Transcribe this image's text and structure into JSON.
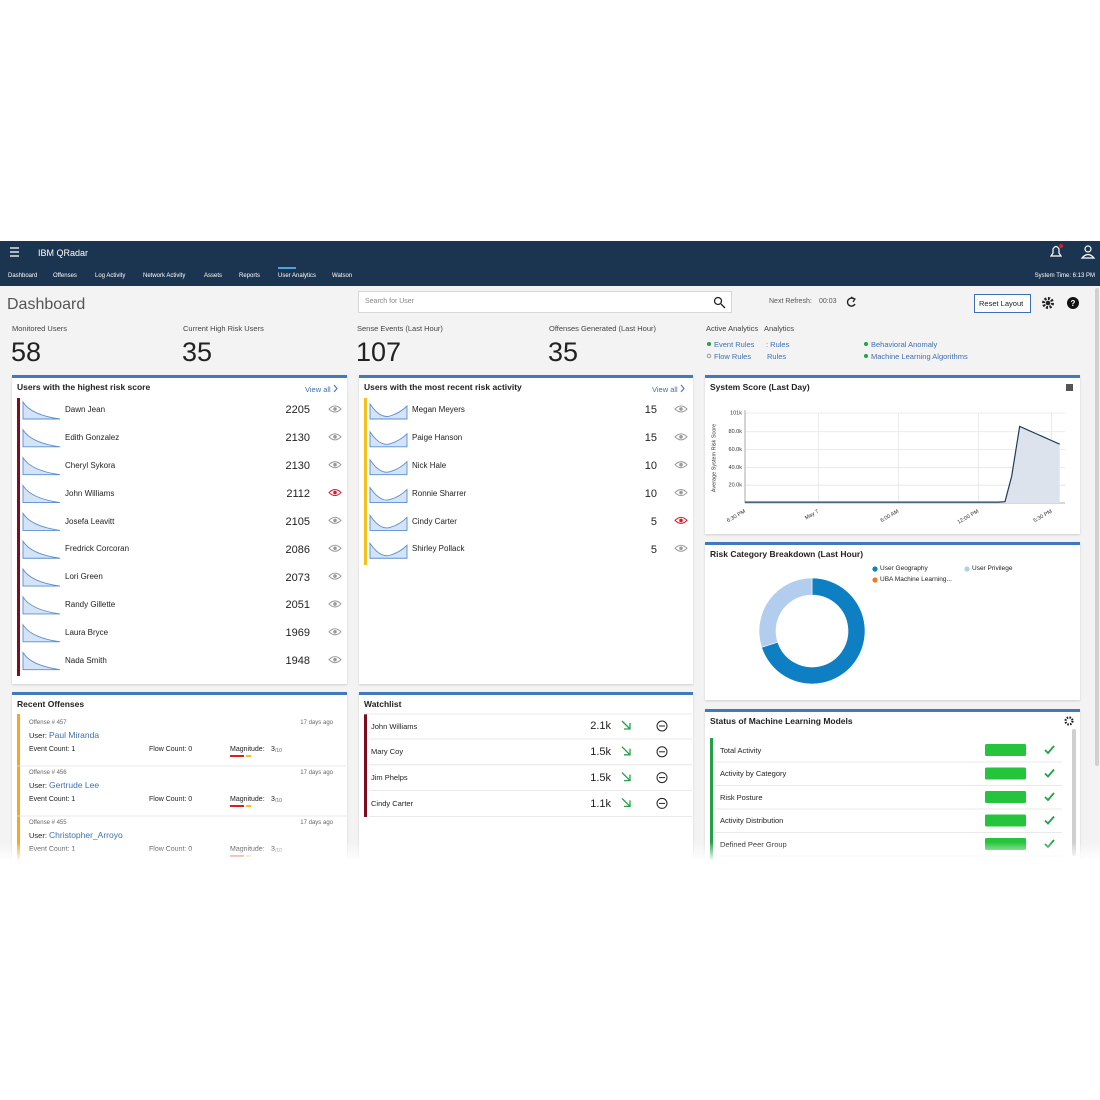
{
  "header": {
    "title": "IBM QRadar",
    "tabs": [
      "Dashboard",
      "Offenses",
      "Log Activity",
      "Network Activity",
      "Assets",
      "Reports",
      "User Analytics",
      "Watson"
    ],
    "system_time": "System Time: 6:13 PM"
  },
  "toolbar": {
    "title": "Dashboard",
    "search_placeholder": "Search for User",
    "next_refresh_label": "Next Refresh:",
    "next_refresh": "00:03",
    "reset_layout": "Reset Layout"
  },
  "stats": [
    {
      "label": "Monitored Users",
      "value": 58
    },
    {
      "label": "Current High Risk Users",
      "value": 35
    },
    {
      "label": "Sense Events (Last Hour)",
      "value": 107
    },
    {
      "label": "Offenses Generated (Last Hour)",
      "value": 35
    }
  ],
  "active_analytics": {
    "title": "Active Analytics",
    "title_overlap": "Analytics",
    "items": [
      "Event Rules",
      ": Rules",
      "Flow Rules",
      "Rules",
      "Behavioral Anomaly",
      "Machine Learning Algorithms"
    ]
  },
  "highest_risk": {
    "title": "Users with the highest risk score",
    "view_all": "View all",
    "rows": [
      {
        "name": "Dawn Jean",
        "score": 2205,
        "flagged": false
      },
      {
        "name": "Edith Gonzalez",
        "score": 2130,
        "flagged": false
      },
      {
        "name": "Cheryl Sykora",
        "score": 2130,
        "flagged": false
      },
      {
        "name": "John Williams",
        "score": 2112,
        "flagged": true
      },
      {
        "name": "Josefa Leavitt",
        "score": 2105,
        "flagged": false
      },
      {
        "name": "Fredrick Corcoran",
        "score": 2086,
        "flagged": false
      },
      {
        "name": "Lori Green",
        "score": 2073,
        "flagged": false
      },
      {
        "name": "Randy Gillette",
        "score": 2051,
        "flagged": false
      },
      {
        "name": "Laura Bryce",
        "score": 1969,
        "flagged": false
      },
      {
        "name": "Nada Smith",
        "score": 1948,
        "flagged": false
      }
    ]
  },
  "recent_activity": {
    "title": "Users with the most recent risk activity",
    "view_all": "View all",
    "rows": [
      {
        "name": "Megan Meyers",
        "score": 15,
        "flagged": false
      },
      {
        "name": "Paige Hanson",
        "score": 15,
        "flagged": false
      },
      {
        "name": "Nick Hale",
        "score": 10,
        "flagged": false
      },
      {
        "name": "Ronnie Sharrer",
        "score": 10,
        "flagged": false
      },
      {
        "name": "Cindy Carter",
        "score": 5,
        "flagged": true
      },
      {
        "name": "Shirley Pollack",
        "score": 5,
        "flagged": false
      }
    ]
  },
  "system_score": {
    "type": "line",
    "title": "System Score (Last Day)",
    "y_label": "Average System Risk Score",
    "x": [
      0,
      2,
      4,
      6,
      8,
      10,
      12,
      14,
      16,
      18,
      19,
      19.5,
      20,
      20.6,
      21.2,
      21.8,
      22.4,
      23,
      23.6
    ],
    "values": [
      1000,
      1000,
      1000,
      1000,
      1000,
      1000,
      1000,
      1000,
      1000,
      1000,
      1000,
      1500,
      30000,
      86000,
      82000,
      78000,
      74000,
      70000,
      66000
    ],
    "color": "#1f3a5c",
    "xlim": [
      0,
      24
    ],
    "ylim": [
      0,
      101000
    ],
    "xticks": [
      {
        "value": 0,
        "label": "6:30 PM"
      },
      {
        "value": 5.5,
        "label": "May 7"
      },
      {
        "value": 11.5,
        "label": "6:00 AM"
      },
      {
        "value": 17.5,
        "label": "12:00 PM"
      },
      {
        "value": 23,
        "label": "5:30 PM"
      }
    ],
    "yticks": [
      {
        "value": 20000,
        "label": "20.0k"
      },
      {
        "value": 40000,
        "label": "40.0k"
      },
      {
        "value": 60000,
        "label": "60.0k"
      },
      {
        "value": 80000,
        "label": "80.0k"
      },
      {
        "value": 101000,
        "label": "101k"
      }
    ],
    "grid": true
  },
  "risk_category": {
    "type": "pie",
    "title": "Risk Category Breakdown (Last Hour)",
    "series": [
      {
        "name": "User Geography",
        "color": "#0f7fc4",
        "value": 70
      },
      {
        "name": "User Privilege",
        "color": "#b3cdee",
        "value": 30
      },
      {
        "name": "UBA Machine Learning...",
        "color": "#f07d1a",
        "value": 0
      }
    ]
  },
  "recent_offenses": {
    "title": "Recent Offenses",
    "items": [
      {
        "offense": "Offense # 457",
        "age": "17 days ago",
        "user_label": "User:",
        "user": "Paul Miranda",
        "event_count": "Event Count: 1",
        "flow_count": "Flow Count: 0",
        "magnitude_label": "Magnitude:",
        "magnitude": 3,
        "magnitude_max": "/10"
      },
      {
        "offense": "Offense # 456",
        "age": "17 days ago",
        "user_label": "User:",
        "user": "Gertrude Lee",
        "event_count": "Event Count: 1",
        "flow_count": "Flow Count: 0",
        "magnitude_label": "Magnitude:",
        "magnitude": 3,
        "magnitude_max": "/10"
      },
      {
        "offense": "Offense # 455",
        "age": "17 days ago",
        "user_label": "User:",
        "user": "Christopher_Arroyo",
        "event_count": "Event Count: 1",
        "flow_count": "Flow Count: 0",
        "magnitude_label": "Magnitude:",
        "magnitude": 3,
        "magnitude_max": "/10"
      }
    ]
  },
  "watchlist": {
    "title": "Watchlist",
    "rows": [
      {
        "name": "John Williams",
        "value": "2.1k"
      },
      {
        "name": "Mary Coy",
        "value": "1.5k"
      },
      {
        "name": "Jim Phelps",
        "value": "1.5k"
      },
      {
        "name": "Cindy Carter",
        "value": "1.1k"
      }
    ]
  },
  "ml_models": {
    "title": "Status of Machine Learning Models",
    "rows": [
      "Total Activity",
      "Activity by Category",
      "Risk Posture",
      "Activity Distribution",
      "Defined Peer Group"
    ]
  }
}
